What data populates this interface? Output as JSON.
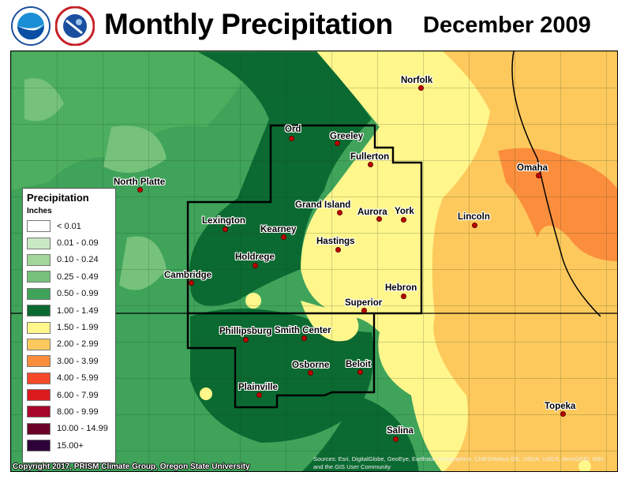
{
  "header": {
    "title": "Monthly Precipitation",
    "date": "December 2009",
    "logos": [
      "NOAA",
      "National Weather Service"
    ]
  },
  "legend": {
    "title": "Precipitation",
    "units": "Inches",
    "items": [
      {
        "label": "< 0.01",
        "color": "#ffffff"
      },
      {
        "label": "0.01 - 0.09",
        "color": "#c9e8c4"
      },
      {
        "label": "0.10 - 0.24",
        "color": "#a3d69b"
      },
      {
        "label": "0.25 - 0.49",
        "color": "#76c27a"
      },
      {
        "label": "0.50 - 0.99",
        "color": "#3fa35a"
      },
      {
        "label": "1.00 - 1.49",
        "color": "#0b6a31"
      },
      {
        "label": "1.50 - 1.99",
        "color": "#fff68c"
      },
      {
        "label": "2.00 - 2.99",
        "color": "#fdc95c"
      },
      {
        "label": "3.00 - 3.99",
        "color": "#fb8e3d"
      },
      {
        "label": "4.00 - 5.99",
        "color": "#f64a28"
      },
      {
        "label": "6.00 - 7.99",
        "color": "#dc1b1f"
      },
      {
        "label": "8.00 - 9.99",
        "color": "#a8062a"
      },
      {
        "label": "10.00 - 14.99",
        "color": "#6b0026"
      },
      {
        "label": "15.00+",
        "color": "#2e0238"
      }
    ]
  },
  "cities": [
    "Norfolk",
    "Ord",
    "Greeley",
    "Fullerton",
    "North Platte",
    "Omaha",
    "Grand Island",
    "Aurora",
    "York",
    "Lexington",
    "Lincoln",
    "Kearney",
    "Hastings",
    "Holdrege",
    "Cambridge",
    "Hebron",
    "Superior",
    "Phillipsburg",
    "Smith Center",
    "Osborne",
    "Beloit",
    "Plainville",
    "Topeka",
    "Salina"
  ],
  "footer": {
    "copyright": "Copyright 2017, PRISM Climate Group, Oregon State University",
    "source": "Sources: Esri, DigitalGlobe, GeoEye, Earthstar Geographics, CNES/Airbus DS, USDA, USGS, AeroGRID, IGN, and the GIS User Community"
  }
}
